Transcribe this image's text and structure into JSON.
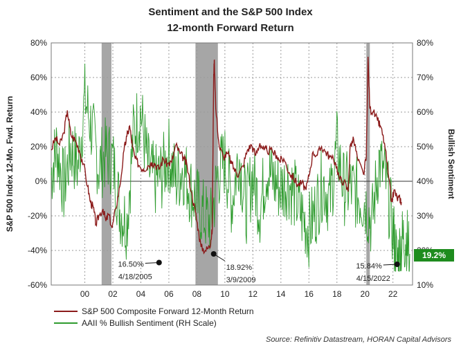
{
  "chart_data": {
    "type": "line",
    "title": "Sentiment and the S&P 500 Index",
    "subtitle": "12-month Forward Return",
    "ylabel_left": "S&P 500 Index 12-Mo. Fwd. Return",
    "ylabel_right": "Bullish Sentiment",
    "ylim_left": [
      -60,
      80
    ],
    "ylim_right": [
      10,
      80
    ],
    "xlim": [
      1997.6,
      2023.4
    ],
    "x_ticks": [
      {
        "value": 2000,
        "label": "00"
      },
      {
        "value": 2002,
        "label": "02"
      },
      {
        "value": 2004,
        "label": "04"
      },
      {
        "value": 2006,
        "label": "06"
      },
      {
        "value": 2008,
        "label": "08"
      },
      {
        "value": 2010,
        "label": "10"
      },
      {
        "value": 2012,
        "label": "12"
      },
      {
        "value": 2014,
        "label": "14"
      },
      {
        "value": 2016,
        "label": "16"
      },
      {
        "value": 2018,
        "label": "18"
      },
      {
        "value": 2020,
        "label": "20"
      },
      {
        "value": 2022,
        "label": "22"
      }
    ],
    "y_ticks_left": [
      "-60%",
      "-40%",
      "-20%",
      "0%",
      "20%",
      "40%",
      "60%",
      "80%"
    ],
    "y_ticks_right": [
      "10%",
      "20%",
      "30%",
      "40%",
      "50%",
      "60%",
      "70%",
      "80%"
    ],
    "recessions": [
      {
        "start": 2001.2,
        "end": 2001.9
      },
      {
        "start": 2007.9,
        "end": 2009.5
      },
      {
        "start": 2020.1,
        "end": 2020.35
      }
    ],
    "series": [
      {
        "name": "S&P 500 Composite Forward 12-Month Return",
        "axis": "left",
        "color": "#8b1a1a",
        "points": [
          [
            1997.6,
            18
          ],
          [
            1997.9,
            25
          ],
          [
            1998.2,
            21
          ],
          [
            1998.5,
            28
          ],
          [
            1998.75,
            41
          ],
          [
            1999.0,
            27
          ],
          [
            1999.3,
            24
          ],
          [
            1999.6,
            18
          ],
          [
            1999.9,
            10
          ],
          [
            2000.2,
            -3
          ],
          [
            2000.4,
            -12
          ],
          [
            2000.6,
            -15
          ],
          [
            2000.8,
            -25
          ],
          [
            2001.0,
            -20
          ],
          [
            2001.3,
            -16
          ],
          [
            2001.5,
            -23
          ],
          [
            2001.7,
            -19
          ],
          [
            2001.95,
            -27
          ],
          [
            2002.2,
            -16
          ],
          [
            2002.5,
            -3
          ],
          [
            2002.8,
            18
          ],
          [
            2003.0,
            26
          ],
          [
            2003.2,
            32
          ],
          [
            2003.4,
            20
          ],
          [
            2003.6,
            13
          ],
          [
            2003.9,
            9
          ],
          [
            2004.2,
            7
          ],
          [
            2004.5,
            9
          ],
          [
            2004.8,
            11
          ],
          [
            2005.0,
            10
          ],
          [
            2005.3,
            7
          ],
          [
            2005.6,
            13
          ],
          [
            2005.9,
            10
          ],
          [
            2006.2,
            11
          ],
          [
            2006.5,
            21
          ],
          [
            2006.8,
            16
          ],
          [
            2007.1,
            13
          ],
          [
            2007.3,
            9
          ],
          [
            2007.6,
            -6
          ],
          [
            2007.9,
            -18
          ],
          [
            2008.1,
            -28
          ],
          [
            2008.3,
            -38
          ],
          [
            2008.6,
            -40
          ],
          [
            2008.9,
            -38
          ],
          [
            2009.0,
            -34
          ],
          [
            2009.1,
            -28
          ],
          [
            2009.2,
            62
          ],
          [
            2009.25,
            70
          ],
          [
            2009.35,
            42
          ],
          [
            2009.6,
            20
          ],
          [
            2009.9,
            14
          ],
          [
            2010.2,
            16
          ],
          [
            2010.5,
            10
          ],
          [
            2010.8,
            5
          ],
          [
            2011.0,
            4
          ],
          [
            2011.3,
            9
          ],
          [
            2011.6,
            18
          ],
          [
            2011.9,
            21
          ],
          [
            2012.2,
            15
          ],
          [
            2012.5,
            22
          ],
          [
            2012.8,
            18
          ],
          [
            2013.0,
            18
          ],
          [
            2013.4,
            17
          ],
          [
            2013.7,
            15
          ],
          [
            2013.9,
            12
          ],
          [
            2014.2,
            13
          ],
          [
            2014.6,
            5
          ],
          [
            2014.9,
            2
          ],
          [
            2015.2,
            -2
          ],
          [
            2015.5,
            -1
          ],
          [
            2015.8,
            -5
          ],
          [
            2016.0,
            3
          ],
          [
            2016.3,
            17
          ],
          [
            2016.6,
            15
          ],
          [
            2016.9,
            20
          ],
          [
            2017.2,
            17
          ],
          [
            2017.5,
            14
          ],
          [
            2017.9,
            11
          ],
          [
            2018.2,
            1
          ],
          [
            2018.5,
            0
          ],
          [
            2018.8,
            -6
          ],
          [
            2018.95,
            21
          ],
          [
            2019.2,
            24
          ],
          [
            2019.5,
            12
          ],
          [
            2019.9,
            4
          ],
          [
            2020.1,
            14
          ],
          [
            2020.22,
            72
          ],
          [
            2020.35,
            42
          ],
          [
            2020.6,
            40
          ],
          [
            2020.9,
            35
          ],
          [
            2021.1,
            32
          ],
          [
            2021.4,
            22
          ],
          [
            2021.7,
            2
          ],
          [
            2021.9,
            -12
          ],
          [
            2022.1,
            -5
          ],
          [
            2022.3,
            -10
          ],
          [
            2022.5,
            -10
          ],
          [
            2022.6,
            -12
          ]
        ]
      },
      {
        "name": "AAII % Bullish Sentiment (RH Scale)",
        "axis": "right",
        "color": "#2e9b2e",
        "points": [
          [
            1997.6,
            42
          ],
          [
            1998.0,
            50
          ],
          [
            1998.5,
            38
          ],
          [
            1999.0,
            50
          ],
          [
            1999.5,
            44
          ],
          [
            2000.0,
            64
          ],
          [
            2000.5,
            55
          ],
          [
            2001.0,
            44
          ],
          [
            2001.5,
            48
          ],
          [
            2002.0,
            46
          ],
          [
            2002.5,
            32
          ],
          [
            2003.0,
            28
          ],
          [
            2003.5,
            55
          ],
          [
            2004.0,
            60
          ],
          [
            2004.5,
            44
          ],
          [
            2005.0,
            40
          ],
          [
            2005.5,
            42
          ],
          [
            2006.0,
            48
          ],
          [
            2006.5,
            40
          ],
          [
            2007.0,
            44
          ],
          [
            2007.5,
            38
          ],
          [
            2008.0,
            34
          ],
          [
            2008.5,
            30
          ],
          [
            2009.0,
            28
          ],
          [
            2009.5,
            42
          ],
          [
            2010.0,
            46
          ],
          [
            2010.5,
            34
          ],
          [
            2011.0,
            48
          ],
          [
            2011.5,
            32
          ],
          [
            2012.0,
            42
          ],
          [
            2012.5,
            32
          ],
          [
            2013.0,
            44
          ],
          [
            2013.5,
            40
          ],
          [
            2014.0,
            38
          ],
          [
            2014.5,
            40
          ],
          [
            2015.0,
            36
          ],
          [
            2015.5,
            30
          ],
          [
            2016.0,
            26
          ],
          [
            2016.5,
            32
          ],
          [
            2017.0,
            40
          ],
          [
            2017.5,
            34
          ],
          [
            2018.0,
            50
          ],
          [
            2018.5,
            38
          ],
          [
            2019.0,
            38
          ],
          [
            2019.5,
            36
          ],
          [
            2020.0,
            34
          ],
          [
            2020.5,
            28
          ],
          [
            2021.0,
            46
          ],
          [
            2021.5,
            40
          ],
          [
            2022.0,
            26
          ],
          [
            2022.3,
            16
          ],
          [
            2022.6,
            22
          ],
          [
            2022.9,
            24
          ],
          [
            2023.2,
            19
          ]
        ]
      }
    ],
    "annotations": [
      {
        "x": 2005.3,
        "y": -47,
        "value": "16.50%",
        "date": "4/18/2005",
        "label_side": "left"
      },
      {
        "x": 2009.2,
        "y": -42,
        "value": "18.92%",
        "date": "3/9/2009",
        "label_side": "right"
      },
      {
        "x": 2022.3,
        "y": -48,
        "value": "15.84%",
        "date": "4/15/2022",
        "label_side": "left"
      }
    ],
    "last_value_badge": "19.2%",
    "badge_color": "#1e8c1e",
    "grid": true,
    "legend_position": "bottom-left",
    "source": "Source: Refinitiv Datastream, HORAN Capital Advisors"
  }
}
